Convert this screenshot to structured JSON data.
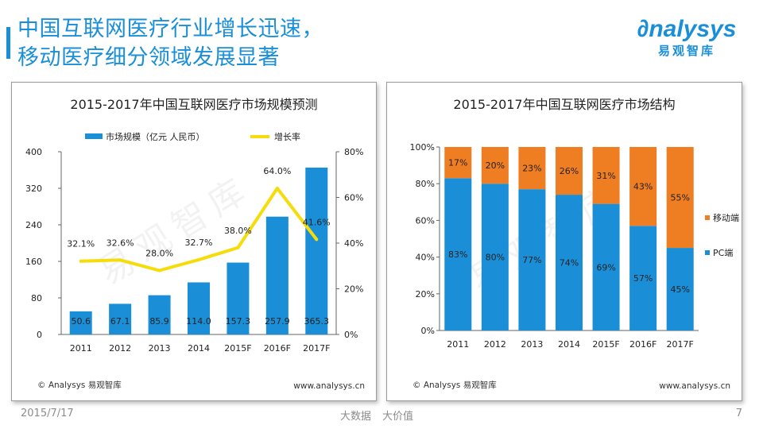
{
  "header": {
    "title_line1": "中国互联网医疗行业增长迅速，",
    "title_line2": "移动医疗细分领域发展显著",
    "logo_text": "nalysys",
    "logo_cn": "易观智库"
  },
  "watermark": "易观智库",
  "colors": {
    "blue": "#1a8fd8",
    "yellow": "#f5dc0a",
    "orange": "#ef7d22"
  },
  "chart_data": [
    {
      "type": "bar",
      "title": "2015-2017年中国互联网医疗市场规模预测",
      "categories": [
        "2011",
        "2012",
        "2013",
        "2014",
        "2015F",
        "2016F",
        "2017F"
      ],
      "series": [
        {
          "name": "市场规模（亿元 人民币）",
          "type": "bar",
          "axis": "left",
          "values": [
            50.6,
            67.1,
            85.9,
            114.0,
            157.3,
            257.9,
            365.3
          ],
          "labels": [
            "50.6",
            "67.1",
            "85.9",
            "114.0",
            "157.3",
            "257.9",
            "365.3"
          ]
        },
        {
          "name": "增长率",
          "type": "line",
          "axis": "right",
          "values": [
            32.1,
            32.6,
            28.0,
            32.7,
            38.0,
            64.0,
            41.6
          ],
          "labels": [
            "32.1%",
            "32.6%",
            "28.0%",
            "32.7%",
            "38.0%",
            "64.0%",
            "41.6%"
          ]
        }
      ],
      "ylim": [
        0,
        400
      ],
      "yticks": [
        "0",
        "80",
        "160",
        "240",
        "320",
        "400"
      ],
      "y2lim": [
        0,
        80
      ],
      "y2ticks": [
        "0%",
        "20%",
        "40%",
        "60%",
        "80%"
      ],
      "legend_position": "top",
      "grid": false,
      "footer_left": "© Analysys 易观智库",
      "footer_right": "www.analysys.cn"
    },
    {
      "type": "bar",
      "stacked": true,
      "title": "2015-2017年中国互联网医疗市场结构",
      "categories": [
        "2011",
        "2012",
        "2013",
        "2014",
        "2015F",
        "2016F",
        "2017F"
      ],
      "series": [
        {
          "name": "PC端",
          "values": [
            83,
            80,
            77,
            74,
            69,
            57,
            45
          ],
          "labels": [
            "83%",
            "80%",
            "77%",
            "74%",
            "69%",
            "57%",
            "45%"
          ]
        },
        {
          "name": "移动端",
          "values": [
            17,
            20,
            23,
            26,
            31,
            43,
            55
          ],
          "labels": [
            "17%",
            "20%",
            "23%",
            "26%",
            "31%",
            "43%",
            "55%"
          ]
        }
      ],
      "ylim": [
        0,
        100
      ],
      "yticks": [
        "0%",
        "20%",
        "40%",
        "60%",
        "80%",
        "100%"
      ],
      "legend_position": "right",
      "grid": false,
      "footer_left": "© Analysys 易观智库",
      "footer_right": "www.analysys.cn"
    }
  ],
  "footer": {
    "date": "2015/7/17",
    "slogan1": "大数据",
    "slogan2": "大价值",
    "page": "7"
  }
}
